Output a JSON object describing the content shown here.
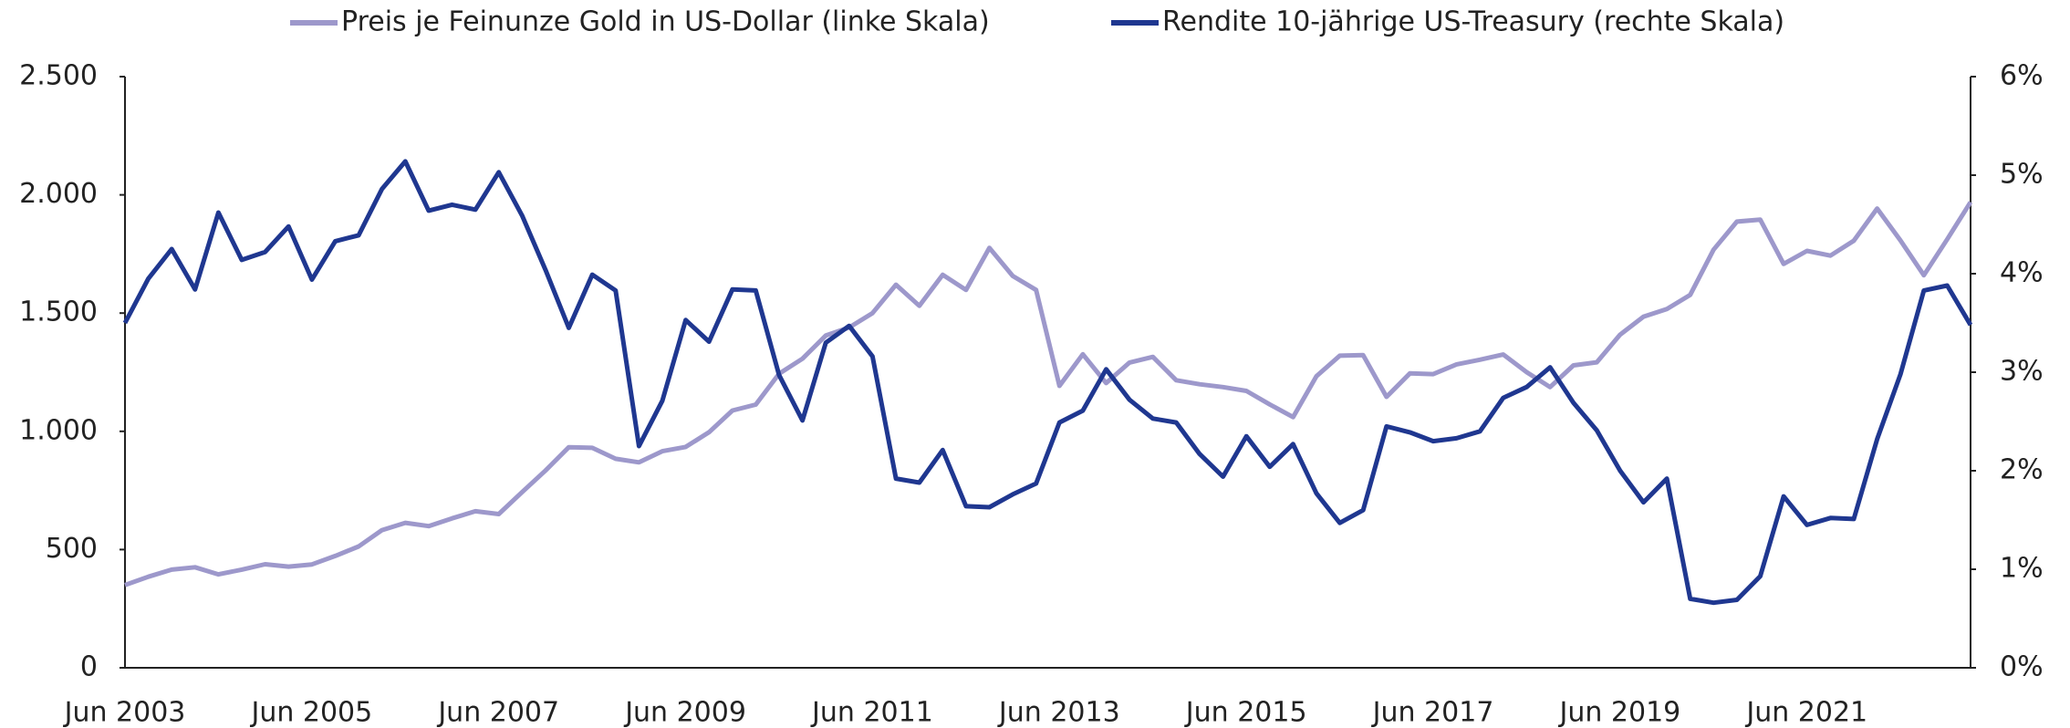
{
  "chart_data": {
    "type": "line",
    "categories": [
      "Jun 2003",
      null,
      null,
      null,
      null,
      null,
      null,
      null,
      "Jun 2005",
      null,
      null,
      null,
      null,
      null,
      null,
      null,
      "Jun 2007",
      null,
      null,
      null,
      null,
      null,
      null,
      null,
      "Jun 2009",
      null,
      null,
      null,
      null,
      null,
      null,
      null,
      "Jun 2011",
      null,
      null,
      null,
      null,
      null,
      null,
      null,
      "Jun 2013",
      null,
      null,
      null,
      null,
      null,
      null,
      null,
      "Jun 2015",
      null,
      null,
      null,
      null,
      null,
      null,
      null,
      "Jun 2017",
      null,
      null,
      null,
      null,
      null,
      null,
      null,
      "Jun 2019",
      null,
      null,
      null,
      null,
      null,
      null,
      null,
      "Jun 2021",
      null,
      null,
      null,
      null,
      null,
      null,
      null
    ],
    "series": [
      {
        "name": "Preis je Feinunze Gold in US-Dollar (linke Skala)",
        "color": "#9d98cb",
        "axis": "y",
        "values": [
          350,
          385,
          415,
          425,
          395,
          415,
          438,
          428,
          437,
          473,
          513,
          582,
          613,
          599,
          632,
          662,
          650,
          743,
          834,
          933,
          930,
          884,
          869,
          916,
          934,
          996,
          1088,
          1113,
          1244,
          1307,
          1405,
          1439,
          1500,
          1620,
          1531,
          1662,
          1598,
          1776,
          1657,
          1598,
          1192,
          1326,
          1204,
          1291,
          1315,
          1216,
          1199,
          1187,
          1171,
          1114,
          1060,
          1233,
          1320,
          1322,
          1146,
          1245,
          1242,
          1283,
          1303,
          1325,
          1250,
          1187,
          1279,
          1292,
          1409,
          1485,
          1517,
          1577,
          1768,
          1887,
          1895,
          1708,
          1763,
          1743,
          1806,
          1942,
          1807,
          1660,
          1812,
          1969
        ]
      },
      {
        "name": "Rendite 10-jährige US-Treasury (rechte Skala)",
        "color": "#1f3790",
        "axis": "y2",
        "values": [
          3.5,
          3.95,
          4.25,
          3.84,
          4.62,
          4.14,
          4.22,
          4.48,
          3.94,
          4.33,
          4.39,
          4.86,
          5.14,
          4.64,
          4.7,
          4.65,
          5.03,
          4.59,
          4.04,
          3.45,
          3.99,
          3.83,
          2.25,
          2.71,
          3.53,
          3.31,
          3.84,
          3.83,
          2.97,
          2.51,
          3.3,
          3.47,
          3.16,
          1.92,
          1.88,
          2.21,
          1.64,
          1.63,
          1.76,
          1.87,
          2.49,
          2.61,
          3.03,
          2.72,
          2.53,
          2.49,
          2.17,
          1.94,
          2.35,
          2.04,
          2.27,
          1.77,
          1.47,
          1.6,
          2.45,
          2.39,
          2.3,
          2.33,
          2.4,
          2.74,
          2.85,
          3.05,
          2.69,
          2.41,
          2.0,
          1.68,
          1.92,
          0.7,
          0.66,
          0.69,
          0.93,
          1.74,
          1.45,
          1.52,
          1.51,
          2.32,
          2.98,
          3.83,
          3.88,
          3.48
        ]
      }
    ],
    "ylim": [
      0,
      2500
    ],
    "yticks": [
      0,
      500,
      {
        "value": 1000,
        "label": "1.000"
      },
      {
        "value": 1500,
        "label": "1.500"
      },
      {
        "value": 2000,
        "label": "2.000"
      },
      {
        "value": 2500,
        "label": "2.500"
      }
    ],
    "y2lim": [
      0,
      6
    ],
    "y2ticks": [
      {
        "value": 0,
        "label": "0%"
      },
      {
        "value": 1,
        "label": "1%"
      },
      {
        "value": 2,
        "label": "2%"
      },
      {
        "value": 3,
        "label": "3%"
      },
      {
        "value": 4,
        "label": "4%"
      },
      {
        "value": 5,
        "label": "5%"
      },
      {
        "value": 6,
        "label": "6%"
      }
    ],
    "grid": false,
    "legend": "top"
  }
}
